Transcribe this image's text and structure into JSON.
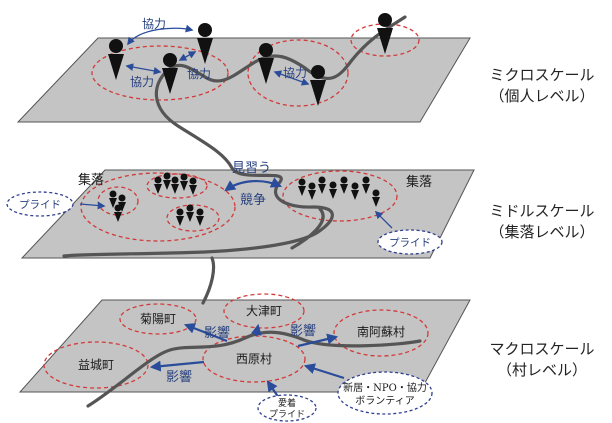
{
  "colors": {
    "plane_fill": "#c4c4c4",
    "ellipse_red": "#d23a3a",
    "ellipse_navy": "#2f3f8f",
    "arrow_blue": "#2a4c9a",
    "label_blue": "#27417f",
    "route_gray": "#555555"
  },
  "levels": {
    "micro": {
      "title": "ミクロスケール",
      "sub": "（個人レベル）"
    },
    "middle": {
      "title": "ミドルスケール",
      "sub": "（集落レベル）"
    },
    "macro": {
      "title": "マクロスケール",
      "sub": "（村レベル）"
    }
  },
  "micro": {
    "cooperation_labels": [
      "協力",
      "協力",
      "協力",
      "協力"
    ]
  },
  "middle": {
    "village_labels": [
      "集落",
      "集落"
    ],
    "imitate_label": "見習う",
    "compete_label": "競争",
    "pride_labels": [
      "プライド",
      "プライド"
    ]
  },
  "macro": {
    "towns": [
      "菊陽町",
      "大津町",
      "南阿蘇村",
      "益城町",
      "西原村"
    ],
    "influence_labels": [
      "影響",
      "影響",
      "影響"
    ],
    "support": {
      "line1": "新居・NPO・協力",
      "line2": "ボランティア"
    },
    "attachment": {
      "line1": "愛着",
      "line2": "プライド"
    }
  }
}
